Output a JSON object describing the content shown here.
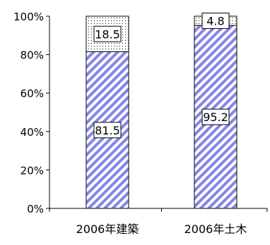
{
  "chart_data": {
    "type": "bar",
    "stacked": true,
    "percent_stacked": true,
    "categories": [
      "2006年建築",
      "2006年土木"
    ],
    "series": [
      {
        "values": [
          81.5,
          95.2
        ],
        "fill": "hatched",
        "hatch_color": "#8484e8"
      },
      {
        "values": [
          18.5,
          4.8
        ],
        "fill": "dotted",
        "hatch_color": "#000000"
      }
    ],
    "ylim": [
      0,
      100
    ],
    "yticks": [
      "0%",
      "20%",
      "40%",
      "60%",
      "80%",
      "100%"
    ],
    "xlabel": "",
    "ylabel": "",
    "title": "",
    "grid": false,
    "legend": false,
    "data_labels": true
  }
}
